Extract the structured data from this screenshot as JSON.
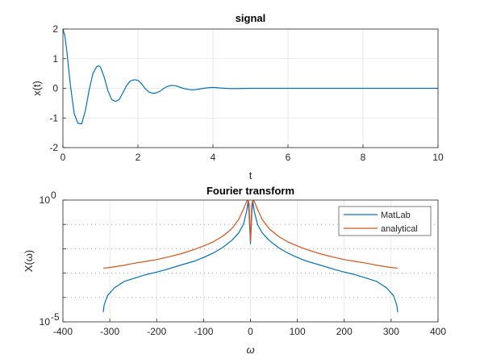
{
  "chart_data": [
    {
      "type": "line",
      "title": "signal",
      "xlabel": "t",
      "ylabel": "x(t)",
      "xlim": [
        0,
        10
      ],
      "ylim": [
        -2,
        2
      ],
      "xticks": [
        "0",
        "2",
        "4",
        "6",
        "8",
        "10"
      ],
      "yticks": [
        "-2",
        "-1",
        "0",
        "1",
        "2"
      ],
      "grid": true,
      "series": [
        {
          "color": "#0072BD",
          "x": [
            0,
            0.05,
            0.1,
            0.2,
            0.3,
            0.4,
            0.5,
            0.6,
            0.7,
            0.8,
            0.9,
            0.95,
            1.0,
            1.1,
            1.2,
            1.3,
            1.4,
            1.5,
            1.6,
            1.7,
            1.8,
            1.9,
            2.0,
            2.1,
            2.2,
            2.3,
            2.4,
            2.5,
            2.6,
            2.7,
            2.8,
            2.9,
            3.0,
            3.2,
            3.4,
            3.5,
            3.6,
            3.8,
            4.0,
            4.2,
            4.5,
            5.0,
            5.5,
            6.0,
            7.0,
            8.0,
            9.0,
            10.0
          ],
          "y": [
            2.0,
            1.78,
            1.3,
            0.1,
            -0.85,
            -1.18,
            -1.2,
            -0.75,
            -0.05,
            0.5,
            0.73,
            0.76,
            0.72,
            0.38,
            -0.08,
            -0.38,
            -0.44,
            -0.38,
            -0.15,
            0.1,
            0.25,
            0.29,
            0.27,
            0.15,
            -0.02,
            -0.13,
            -0.17,
            -0.15,
            -0.09,
            0.01,
            0.07,
            0.1,
            0.09,
            0.0,
            -0.05,
            -0.05,
            -0.03,
            0.01,
            0.03,
            0.01,
            -0.01,
            0.0,
            0.0,
            0.0,
            0.0,
            0.0,
            0.0,
            0.0
          ]
        }
      ]
    },
    {
      "type": "line",
      "title": "Fourier transform",
      "xlabel": "ω",
      "ylabel": "X(ω)",
      "xlim": [
        -400,
        400
      ],
      "yscale": "log",
      "ylim": [
        1e-05,
        1
      ],
      "xticks": [
        "-400",
        "-300",
        "-200",
        "-100",
        "0",
        "100",
        "200",
        "300",
        "400"
      ],
      "grid": true,
      "legend_position": "top-right",
      "series": [
        {
          "name": "MatLab",
          "color": "#0072BD",
          "x": [
            -314,
            -312,
            -305,
            -290,
            -270,
            -250,
            -220,
            -200,
            -180,
            -150,
            -120,
            -100,
            -80,
            -60,
            -40,
            -25,
            -15,
            -8,
            -5,
            -3,
            0,
            3,
            5,
            8,
            15,
            25,
            40,
            60,
            80,
            100,
            120,
            150,
            180,
            200,
            220,
            250,
            270,
            290,
            305,
            312,
            314
          ],
          "y": [
            2.5e-05,
            5e-05,
            0.00012,
            0.00025,
            0.00045,
            0.0006,
            0.0009,
            0.0011,
            0.0014,
            0.0021,
            0.0031,
            0.0044,
            0.0066,
            0.011,
            0.022,
            0.045,
            0.1,
            0.35,
            0.9,
            0.3,
            0.016,
            0.3,
            0.9,
            0.35,
            0.1,
            0.045,
            0.022,
            0.011,
            0.0066,
            0.0044,
            0.0031,
            0.0021,
            0.0014,
            0.0011,
            0.0009,
            0.0006,
            0.00045,
            0.00025,
            0.00012,
            5e-05,
            2.5e-05
          ]
        },
        {
          "name": "analytical",
          "color": "#D95319",
          "x": [
            -314,
            -300,
            -270,
            -250,
            -220,
            -200,
            -180,
            -150,
            -120,
            -100,
            -80,
            -60,
            -40,
            -25,
            -15,
            -8,
            -5,
            -3,
            0,
            3,
            5,
            8,
            15,
            25,
            40,
            60,
            80,
            100,
            120,
            150,
            180,
            200,
            220,
            250,
            270,
            300,
            314
          ],
          "y": [
            0.0016,
            0.0017,
            0.0021,
            0.0025,
            0.0031,
            0.0036,
            0.0044,
            0.0061,
            0.0093,
            0.013,
            0.019,
            0.032,
            0.066,
            0.16,
            0.42,
            0.9,
            0.98,
            0.7,
            0.02,
            0.7,
            0.98,
            0.9,
            0.42,
            0.16,
            0.066,
            0.032,
            0.019,
            0.013,
            0.0093,
            0.0061,
            0.0044,
            0.0036,
            0.0031,
            0.0025,
            0.0021,
            0.0017,
            0.0016
          ]
        }
      ]
    }
  ]
}
